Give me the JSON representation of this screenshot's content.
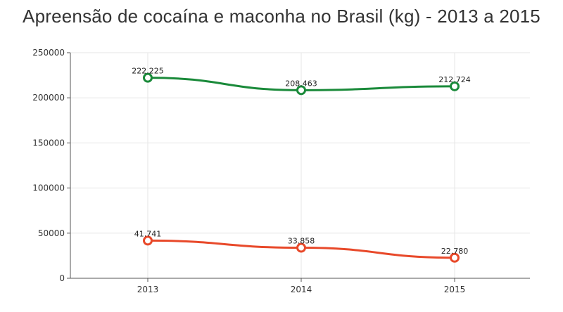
{
  "chart_data": {
    "type": "line",
    "title": "Apreensão de cocaína e maconha no Brasil (kg) - 2013 a 2015",
    "xlabel": "",
    "ylabel": "",
    "categories": [
      "2013",
      "2014",
      "2015"
    ],
    "ylim": [
      0,
      250000
    ],
    "yticks": [
      0,
      50000,
      100000,
      150000,
      200000,
      250000
    ],
    "grid": true,
    "legend": "none",
    "series": [
      {
        "values": [
          222225,
          208463,
          212724
        ],
        "labels": [
          "222.225",
          "208.463",
          "212.724"
        ],
        "color": "#1a8a3a"
      },
      {
        "values": [
          41741,
          33858,
          22780
        ],
        "labels": [
          "41.741",
          "33.858",
          "22.780"
        ],
        "color": "#e8492a"
      }
    ]
  }
}
